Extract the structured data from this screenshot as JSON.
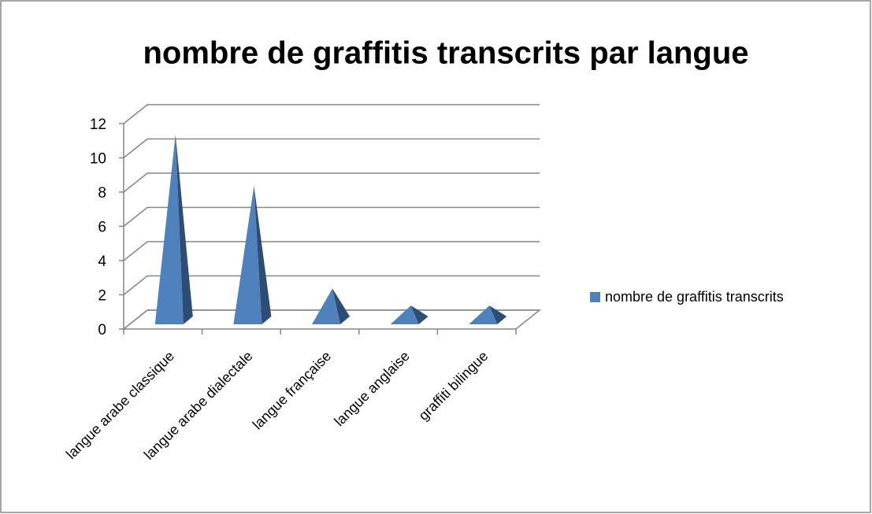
{
  "chart_data": {
    "type": "pyramid3d",
    "title": "nombre de graffitis transcrits par langue",
    "categories": [
      "langue arabe classique",
      "langue arabe dialectale",
      "langue française",
      "langue anglaise",
      "graffiti bilingue"
    ],
    "series": [
      {
        "name": "nombre de graffitis transcrits",
        "color": "#4f81bd",
        "values": [
          11,
          8,
          2,
          1,
          1
        ]
      }
    ],
    "ylim": [
      0,
      12
    ],
    "yticks": [
      0,
      2,
      4,
      6,
      8,
      10,
      12
    ],
    "grid": true,
    "legend": "right"
  }
}
